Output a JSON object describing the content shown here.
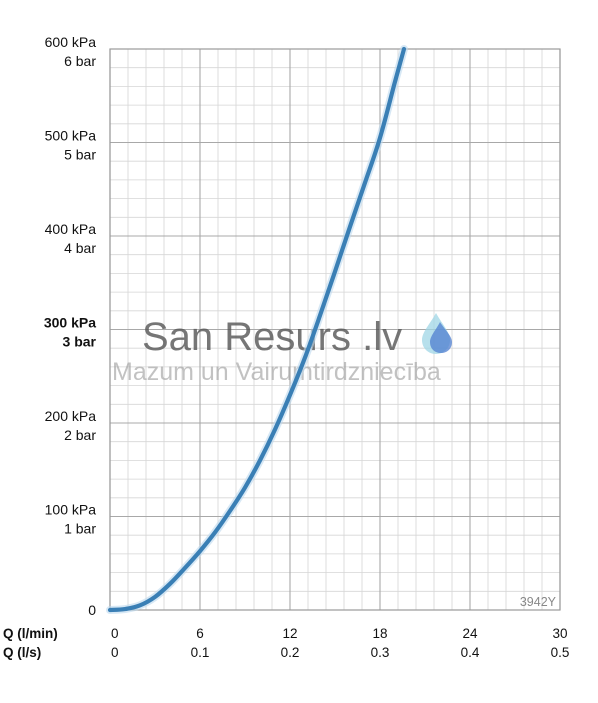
{
  "chart_data": {
    "type": "line",
    "title": "",
    "x_axis": {
      "primary_label": "Q (l/min)",
      "secondary_label": "Q (l/s)",
      "range": [
        0,
        30
      ],
      "ticks": [
        0,
        6,
        12,
        18,
        24,
        30
      ],
      "tick_labels_primary": [
        "0",
        "6",
        "12",
        "18",
        "24",
        "30"
      ],
      "tick_labels_secondary": [
        "0",
        "0.1",
        "0.2",
        "0.3",
        "0.4",
        "0.5"
      ]
    },
    "y_axis": {
      "range": [
        0,
        600
      ],
      "ticks": [
        0,
        100,
        200,
        300,
        400,
        500,
        600
      ],
      "tick_labels": [
        {
          "value": 0,
          "kpa": "0",
          "bar": "",
          "bold": false
        },
        {
          "value": 100,
          "kpa": "100 kPa",
          "bar": "1 bar",
          "bold": false
        },
        {
          "value": 200,
          "kpa": "200 kPa",
          "bar": "2 bar",
          "bold": false
        },
        {
          "value": 300,
          "kpa": "300 kPa",
          "bar": "3 bar",
          "bold": true
        },
        {
          "value": 400,
          "kpa": "400 kPa",
          "bar": "4 bar",
          "bold": false
        },
        {
          "value": 500,
          "kpa": "500 kPa",
          "bar": "5 bar",
          "bold": false
        },
        {
          "value": 600,
          "kpa": "600 kPa",
          "bar": "6 bar",
          "bold": false
        }
      ]
    },
    "grid": true,
    "series": [
      {
        "color": "#3a7fb5",
        "x": [
          0,
          1,
          2,
          3,
          4,
          5,
          6,
          7,
          8,
          9,
          10,
          11,
          12,
          13,
          14,
          15,
          16,
          17,
          18,
          19,
          19.6
        ],
        "y": [
          0,
          1,
          5,
          14,
          28,
          45,
          63,
          83,
          106,
          131,
          160,
          193,
          230,
          270,
          315,
          362,
          410,
          457,
          505,
          565,
          600
        ]
      }
    ]
  },
  "watermark": {
    "title": "San Resurs .lv",
    "subtitle": "Mazum un Vairumtirdzniecība"
  },
  "product_code": "3942Y",
  "colors": {
    "curve": "#3a7fb5",
    "grid_major": "#a8a8a8",
    "grid_minor": "#d6d6d6",
    "drop_light": "#9fd6e6",
    "drop_dark": "#4f7fd0"
  },
  "icons": {
    "logo": "water-drop-icon"
  }
}
